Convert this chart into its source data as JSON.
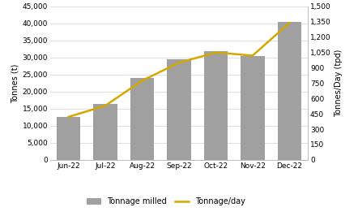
{
  "categories": [
    "Jun-22",
    "Jul-22",
    "Aug-22",
    "Sep-22",
    "Oct-22",
    "Nov-22",
    "Dec-22"
  ],
  "tonnage_milled": [
    12500,
    16500,
    24000,
    29500,
    32000,
    30500,
    40500
  ],
  "tonnage_per_day": [
    420,
    530,
    775,
    950,
    1050,
    1020,
    1340
  ],
  "bar_color": "#a0a0a0",
  "line_color": "#d4a800",
  "left_ylabel": "Tonnes (t)",
  "right_ylabel": "Tonnes/Day (tpd)",
  "left_ylim": [
    0,
    45000
  ],
  "right_ylim": [
    0,
    1500
  ],
  "left_yticks": [
    0,
    5000,
    10000,
    15000,
    20000,
    25000,
    30000,
    35000,
    40000,
    45000
  ],
  "right_yticks": [
    0,
    150,
    300,
    450,
    600,
    750,
    900,
    1050,
    1200,
    1350,
    1500
  ],
  "legend_labels": [
    "Tonnage milled",
    "Tonnage/day"
  ],
  "background_color": "#ffffff",
  "grid_color": "#d9d9d9",
  "bar_width": 0.65,
  "line_width": 1.8,
  "tick_fontsize": 6.5,
  "label_fontsize": 7.0,
  "legend_fontsize": 7.0
}
